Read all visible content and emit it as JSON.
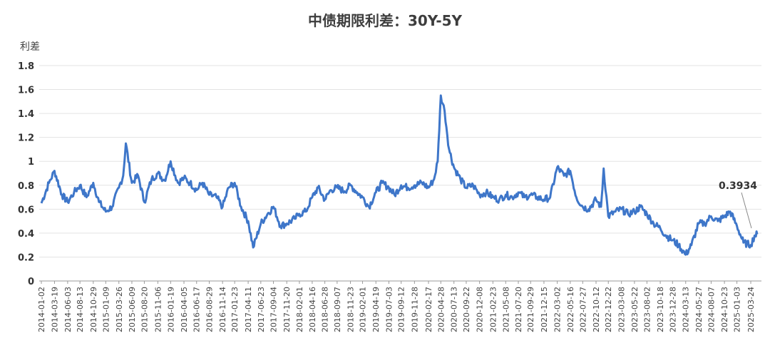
{
  "chart_data": {
    "type": "line",
    "title": "中债期限利差：30Y-5Y",
    "ylabel": "利差",
    "ylim": [
      0,
      1.8
    ],
    "yticks": [
      "0",
      "0.2",
      "0.4",
      "0.6",
      "0.8",
      "1",
      "1.2",
      "1.4",
      "1.6",
      "1.8"
    ],
    "grid": true,
    "color": "#3e76c9",
    "annotation": {
      "label": "0.3934",
      "x": "2025-04-30",
      "y": 0.3934
    },
    "xticks": [
      "2014-01-02",
      "2014-03-19",
      "2014-06-03",
      "2014-08-13",
      "2014-10-29",
      "2015-01-09",
      "2015-03-26",
      "2015-06-09",
      "2015-08-20",
      "2015-11-06",
      "2016-01-19",
      "2016-04-05",
      "2016-06-17",
      "2016-08-29",
      "2016-11-14",
      "2017-01-23",
      "2017-04-11",
      "2017-06-23",
      "2017-09-04",
      "2017-11-20",
      "2018-02-01",
      "2018-04-16",
      "2018-06-28",
      "2018-09-07",
      "2018-11-23",
      "2019-02-01",
      "2019-04-19",
      "2019-07-03",
      "2019-09-12",
      "2019-11-28",
      "2020-02-17",
      "2020-04-28",
      "2020-07-13",
      "2020-09-22",
      "2020-12-08",
      "2021-02-23",
      "2021-05-08",
      "2021-07-20",
      "2021-09-29",
      "2021-12-15",
      "2022-03-02",
      "2022-05-16",
      "2022-07-27",
      "2022-10-12",
      "2022-12-22",
      "2023-03-08",
      "2023-05-22",
      "2023-08-02",
      "2023-10-18",
      "2023-12-28",
      "2024-03-13",
      "2024-05-27",
      "2024-08-07",
      "2024-10-23",
      "2025-01-03",
      "2025-03-24"
    ],
    "series": [
      {
        "x": [
          "2014-01-02",
          "2014-02-15",
          "2014-03-19",
          "2014-05-01",
          "2014-06-03",
          "2014-07-10",
          "2014-08-13",
          "2014-09-20",
          "2014-10-29",
          "2014-12-01",
          "2015-01-09",
          "2015-02-15",
          "2015-03-26",
          "2015-04-20",
          "2015-05-05",
          "2015-06-09",
          "2015-07-15",
          "2015-08-20",
          "2015-10-01",
          "2015-11-06",
          "2015-12-15",
          "2016-01-19",
          "2016-03-01",
          "2016-04-05",
          "2016-05-10",
          "2016-06-17",
          "2016-07-20",
          "2016-08-29",
          "2016-10-10",
          "2016-11-14",
          "2016-12-20",
          "2017-01-23",
          "2017-03-01",
          "2017-04-11",
          "2017-05-10",
          "2017-06-23",
          "2017-08-01",
          "2017-09-04",
          "2017-10-15",
          "2017-11-20",
          "2018-01-05",
          "2018-02-01",
          "2018-03-10",
          "2018-04-16",
          "2018-05-20",
          "2018-06-28",
          "2018-08-01",
          "2018-09-07",
          "2018-10-20",
          "2018-11-23",
          "2019-01-01",
          "2019-02-01",
          "2019-03-10",
          "2019-04-19",
          "2019-05-25",
          "2019-07-03",
          "2019-08-05",
          "2019-09-12",
          "2019-10-20",
          "2019-11-28",
          "2020-01-10",
          "2020-02-17",
          "2020-03-20",
          "2020-04-10",
          "2020-04-28",
          "2020-05-20",
          "2020-06-15",
          "2020-07-13",
          "2020-08-20",
          "2020-09-22",
          "2020-11-01",
          "2020-12-08",
          "2021-01-15",
          "2021-02-23",
          "2021-04-01",
          "2021-05-08",
          "2021-06-15",
          "2021-07-20",
          "2021-08-25",
          "2021-09-29",
          "2021-11-05",
          "2021-12-15",
          "2022-01-20",
          "2022-03-02",
          "2022-04-10",
          "2022-05-16",
          "2022-06-20",
          "2022-07-27",
          "2022-08-30",
          "2022-10-12",
          "2022-11-10",
          "2022-11-25",
          "2022-12-22",
          "2023-02-01",
          "2023-03-08",
          "2023-04-15",
          "2023-05-22",
          "2023-06-25",
          "2023-08-02",
          "2023-09-10",
          "2023-10-18",
          "2023-11-20",
          "2023-12-28",
          "2024-02-01",
          "2024-03-13",
          "2024-04-15",
          "2024-05-27",
          "2024-07-01",
          "2024-08-07",
          "2024-09-15",
          "2024-10-23",
          "2024-11-25",
          "2025-01-03",
          "2025-02-10",
          "2025-03-24",
          "2025-04-15",
          "2025-04-30"
        ],
        "values": [
          0.65,
          0.82,
          0.92,
          0.72,
          0.66,
          0.74,
          0.8,
          0.7,
          0.82,
          0.66,
          0.58,
          0.62,
          0.78,
          0.88,
          1.15,
          0.82,
          0.88,
          0.66,
          0.85,
          0.9,
          0.84,
          1.0,
          0.82,
          0.86,
          0.82,
          0.76,
          0.82,
          0.72,
          0.7,
          0.62,
          0.78,
          0.82,
          0.62,
          0.5,
          0.28,
          0.48,
          0.56,
          0.62,
          0.46,
          0.48,
          0.52,
          0.56,
          0.58,
          0.7,
          0.78,
          0.68,
          0.76,
          0.78,
          0.75,
          0.8,
          0.74,
          0.7,
          0.62,
          0.74,
          0.82,
          0.78,
          0.72,
          0.8,
          0.78,
          0.8,
          0.82,
          0.78,
          0.85,
          1.0,
          1.55,
          1.42,
          1.1,
          0.95,
          0.85,
          0.78,
          0.8,
          0.72,
          0.74,
          0.7,
          0.68,
          0.72,
          0.7,
          0.74,
          0.7,
          0.72,
          0.7,
          0.68,
          0.7,
          0.95,
          0.88,
          0.92,
          0.7,
          0.62,
          0.6,
          0.68,
          0.62,
          0.94,
          0.54,
          0.58,
          0.6,
          0.56,
          0.58,
          0.62,
          0.56,
          0.48,
          0.44,
          0.38,
          0.34,
          0.3,
          0.22,
          0.3,
          0.48,
          0.48,
          0.54,
          0.5,
          0.54,
          0.58,
          0.46,
          0.32,
          0.3,
          0.38,
          0.39
        ]
      }
    ]
  }
}
